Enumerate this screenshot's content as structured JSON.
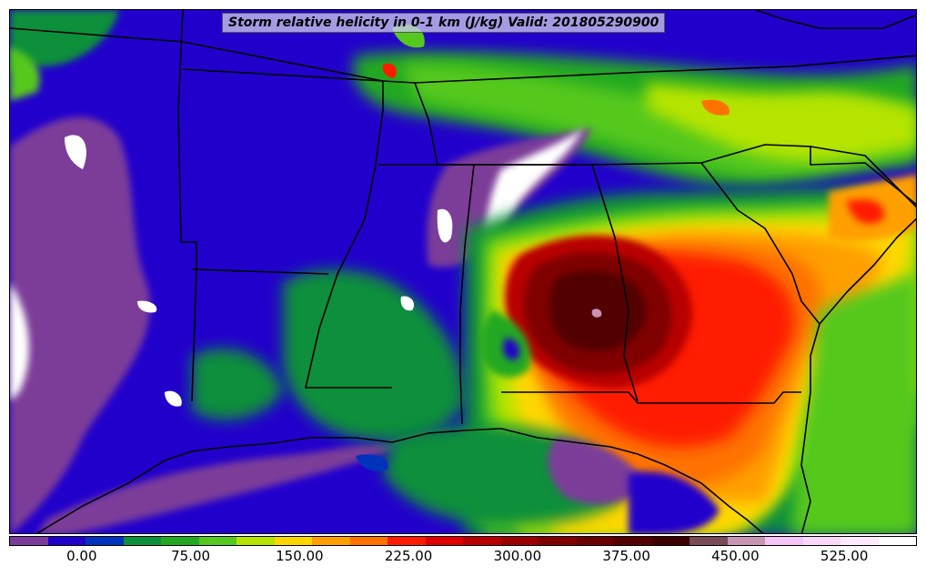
{
  "map": {
    "title": "Storm relative helicity in 0-1 km (J/kg) Valid: 201805290900",
    "variable_icon": "helicity-field"
  },
  "colorbar": {
    "colors": [
      "#7b3d99",
      "#2200cc",
      "#0033bb",
      "#0a8f3a",
      "#22a820",
      "#55c81e",
      "#b5e400",
      "#ffd700",
      "#ff9f00",
      "#ff7200",
      "#ff1c00",
      "#e00000",
      "#b80000",
      "#9a0000",
      "#800000",
      "#6b0000",
      "#520000",
      "#3c0000",
      "#7a4a56",
      "#c894b4",
      "#f5c2f5",
      "#fbd8fb",
      "#ffeaff",
      "#ffffff"
    ],
    "tick_labels": [
      "0.00",
      "75.00",
      "150.00",
      "225.00",
      "300.00",
      "375.00",
      "450.00",
      "525.00"
    ],
    "tick_values": [
      0,
      75,
      150,
      225,
      300,
      375,
      450,
      525
    ],
    "range": [
      -50,
      575
    ]
  }
}
